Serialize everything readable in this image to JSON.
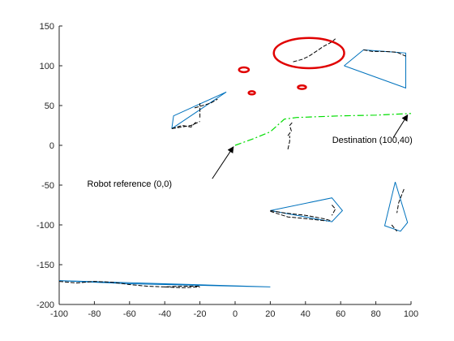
{
  "chart_data": {
    "type": "line",
    "title": "",
    "xlabel": "",
    "ylabel": "",
    "xlim": [
      -100,
      100
    ],
    "ylim": [
      -200,
      150
    ],
    "xticks": [
      -100,
      -80,
      -60,
      -40,
      -20,
      0,
      20,
      40,
      60,
      80,
      100
    ],
    "yticks": [
      -200,
      -150,
      -100,
      -50,
      0,
      50,
      100,
      150
    ],
    "grid": false,
    "box": false,
    "colors": {
      "axis": "#262626",
      "obstacle_outline": "#0072BD",
      "scan_points": "#000000",
      "path": "#00DD00",
      "ellipses": "#E00000",
      "arrows": "#000000"
    },
    "series": [
      {
        "role": "path",
        "style": "dash-dot",
        "points": [
          [
            0,
            0
          ],
          [
            10,
            8
          ],
          [
            20,
            17
          ],
          [
            28,
            33
          ],
          [
            35,
            35
          ],
          [
            60,
            37
          ],
          [
            80,
            38
          ],
          [
            100,
            40
          ]
        ]
      }
    ],
    "obstacle_outlines": [
      [
        [
          -36,
          21
        ],
        [
          -35,
          37
        ],
        [
          -5,
          67
        ],
        [
          -36,
          21
        ]
      ],
      [
        [
          20,
          -82
        ],
        [
          55,
          -66
        ],
        [
          61,
          -82
        ],
        [
          55,
          -96
        ],
        [
          20,
          -82
        ]
      ],
      [
        [
          -100,
          -170
        ],
        [
          -90,
          -171
        ],
        [
          -60,
          -174
        ],
        [
          20,
          -178
        ],
        [
          -100,
          -170
        ]
      ],
      [
        [
          62,
          100
        ],
        [
          73,
          120
        ],
        [
          97,
          116
        ],
        [
          97,
          72
        ],
        [
          62,
          100
        ]
      ],
      [
        [
          91,
          -46
        ],
        [
          98,
          -97
        ],
        [
          94,
          -108
        ],
        [
          85,
          -101
        ],
        [
          91,
          -46
        ]
      ]
    ],
    "scan_segments": [
      [
        [
          -36,
          21
        ],
        [
          -30,
          25
        ],
        [
          -25,
          23
        ],
        [
          -22,
          30
        ]
      ],
      [
        [
          -23,
          47
        ],
        [
          -20,
          49
        ],
        [
          -14,
          53
        ],
        [
          -10,
          58
        ]
      ],
      [
        [
          -20,
          35
        ],
        [
          -20,
          53
        ]
      ],
      [
        [
          -36,
          21
        ],
        [
          -25,
          25
        ],
        [
          -20,
          30
        ]
      ],
      [
        [
          20,
          -82
        ],
        [
          28,
          -85
        ],
        [
          40,
          -88
        ],
        [
          50,
          -92
        ],
        [
          55,
          -95
        ]
      ],
      [
        [
          20,
          -83
        ],
        [
          30,
          -90
        ],
        [
          40,
          -92
        ],
        [
          52,
          -95
        ]
      ],
      [
        [
          55,
          -75
        ],
        [
          57,
          -80
        ],
        [
          55,
          -88
        ]
      ],
      [
        [
          -100,
          -171
        ],
        [
          -90,
          -173
        ],
        [
          -80,
          -171
        ],
        [
          -70,
          -172
        ],
        [
          -60,
          -175
        ],
        [
          -50,
          -177
        ],
        [
          -40,
          -178
        ],
        [
          -30,
          -177
        ],
        [
          -20,
          -177
        ]
      ],
      [
        [
          -40,
          -178
        ],
        [
          -30,
          -179
        ],
        [
          -20,
          -178
        ]
      ],
      [
        [
          73,
          120
        ],
        [
          78,
          118
        ],
        [
          85,
          118
        ],
        [
          92,
          117
        ],
        [
          97,
          112
        ]
      ],
      [
        [
          33,
          105
        ],
        [
          38,
          108
        ],
        [
          42,
          112
        ],
        [
          46,
          118
        ],
        [
          50,
          124
        ],
        [
          55,
          130
        ],
        [
          57,
          134
        ]
      ],
      [
        [
          30,
          12
        ],
        [
          32,
          18
        ],
        [
          31,
          25
        ],
        [
          33,
          30
        ]
      ],
      [
        [
          30,
          -5
        ],
        [
          31,
          5
        ],
        [
          31,
          12
        ]
      ],
      [
        [
          96,
          -55
        ],
        [
          93,
          -72
        ],
        [
          92,
          -85
        ]
      ],
      [
        [
          89,
          -100
        ],
        [
          92,
          -108
        ]
      ]
    ],
    "ellipses": [
      {
        "cx": 42,
        "cy": 116,
        "rx": 20,
        "ry": 19
      },
      {
        "cx": 5,
        "cy": 95,
        "rx": 2.8,
        "ry": 3
      },
      {
        "cx": 38,
        "cy": 73,
        "rx": 2.3,
        "ry": 2.2
      },
      {
        "cx": 9.5,
        "cy": 66,
        "rx": 1.8,
        "ry": 2
      }
    ],
    "annotations": [
      {
        "text": "Robot reference (0,0)",
        "text_x": -60,
        "text_y": -52,
        "arrow_from": [
          -13,
          -42
        ],
        "arrow_to": [
          -1,
          -2
        ]
      },
      {
        "text": "Destination (100,40)",
        "text_x": 78,
        "text_y": 3,
        "arrow_from": [
          90,
          10
        ],
        "arrow_to": [
          98,
          38
        ]
      }
    ]
  }
}
